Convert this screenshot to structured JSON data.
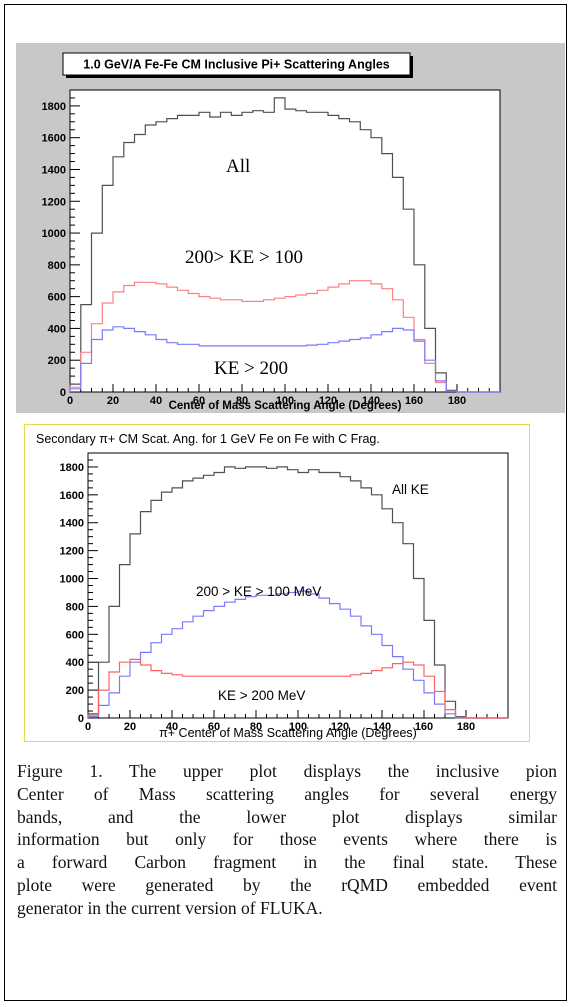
{
  "chart_data": [
    {
      "type": "line",
      "title": "1.0 GeV/A Fe-Fe CM Inclusive Pi+ Scattering Angles",
      "xlabel": "Center of Mass Scattering Angle (Degrees)",
      "ylabel": "",
      "xlim": [
        0,
        200
      ],
      "ylim": [
        0,
        1900
      ],
      "xticks": [
        0,
        20,
        40,
        60,
        80,
        100,
        120,
        140,
        160,
        180
      ],
      "yticks": [
        0,
        200,
        400,
        600,
        800,
        1000,
        1200,
        1400,
        1600,
        1800
      ],
      "grid": false,
      "x": [
        0,
        5,
        10,
        15,
        20,
        25,
        30,
        35,
        40,
        45,
        50,
        55,
        60,
        65,
        70,
        75,
        80,
        85,
        90,
        95,
        100,
        105,
        110,
        115,
        120,
        125,
        130,
        135,
        140,
        145,
        150,
        155,
        160,
        165,
        170,
        175,
        180,
        185,
        190,
        195,
        200
      ],
      "series": [
        {
          "name": "All",
          "color": "#505050",
          "values": [
            50,
            550,
            1000,
            1300,
            1480,
            1570,
            1620,
            1680,
            1700,
            1720,
            1740,
            1740,
            1760,
            1730,
            1760,
            1740,
            1760,
            1770,
            1760,
            1850,
            1780,
            1770,
            1760,
            1760,
            1740,
            1720,
            1700,
            1650,
            1600,
            1500,
            1350,
            1150,
            800,
            400,
            120,
            10,
            0,
            0,
            0,
            0,
            0
          ]
        },
        {
          "name": "200> KE > 100",
          "color": "#ff8080",
          "values": [
            30,
            250,
            430,
            560,
            630,
            670,
            690,
            690,
            680,
            660,
            640,
            620,
            600,
            590,
            580,
            580,
            570,
            570,
            580,
            590,
            600,
            610,
            620,
            640,
            660,
            680,
            700,
            700,
            680,
            650,
            580,
            470,
            330,
            180,
            60,
            5,
            0,
            0,
            0,
            0,
            0
          ]
        },
        {
          "name": "KE > 200",
          "color": "#7a7aff",
          "values": [
            20,
            180,
            330,
            390,
            410,
            400,
            380,
            360,
            330,
            310,
            300,
            300,
            290,
            290,
            290,
            290,
            290,
            290,
            290,
            290,
            290,
            290,
            295,
            300,
            310,
            320,
            330,
            340,
            360,
            380,
            400,
            390,
            320,
            200,
            70,
            5,
            0,
            0,
            0,
            0,
            0
          ]
        }
      ],
      "annotations": [
        "All",
        "200> KE > 100",
        "KE > 200"
      ]
    },
    {
      "type": "line",
      "title": "Secondary π+ CM Scat. Ang. for 1 GeV Fe on Fe with C Frag.",
      "xlabel": "π+ Center of Mass Scattering Angle (Degrees)",
      "ylabel": "",
      "xlim": [
        0,
        200
      ],
      "ylim": [
        0,
        1900
      ],
      "xticks": [
        0,
        20,
        40,
        60,
        80,
        100,
        120,
        140,
        160,
        180
      ],
      "yticks": [
        0,
        200,
        400,
        600,
        800,
        1000,
        1200,
        1400,
        1600,
        1800
      ],
      "grid": false,
      "x": [
        0,
        5,
        10,
        15,
        20,
        25,
        30,
        35,
        40,
        45,
        50,
        55,
        60,
        65,
        70,
        75,
        80,
        85,
        90,
        95,
        100,
        105,
        110,
        115,
        120,
        125,
        130,
        135,
        140,
        145,
        150,
        155,
        160,
        165,
        170,
        175,
        180,
        185,
        190,
        195,
        200
      ],
      "series": [
        {
          "name": "All KE",
          "color": "#505050",
          "values": [
            30,
            400,
            800,
            1100,
            1320,
            1480,
            1560,
            1620,
            1650,
            1700,
            1720,
            1740,
            1760,
            1800,
            1790,
            1800,
            1800,
            1790,
            1800,
            1780,
            1760,
            1780,
            1760,
            1760,
            1730,
            1700,
            1650,
            1600,
            1500,
            1400,
            1250,
            1000,
            700,
            380,
            120,
            10,
            0,
            0,
            0,
            0,
            0
          ]
        },
        {
          "name": "200 > KE > 100 MeV",
          "color": "#7a7aff",
          "values": [
            10,
            90,
            180,
            300,
            400,
            470,
            540,
            600,
            640,
            690,
            730,
            770,
            800,
            830,
            850,
            870,
            880,
            880,
            890,
            900,
            910,
            890,
            860,
            820,
            780,
            730,
            660,
            600,
            520,
            440,
            350,
            270,
            180,
            100,
            30,
            3,
            0,
            0,
            0,
            0,
            0
          ]
        },
        {
          "name": "KE > 200 MeV",
          "color": "#ff6060",
          "values": [
            20,
            200,
            330,
            400,
            420,
            380,
            340,
            320,
            310,
            300,
            300,
            300,
            300,
            300,
            300,
            300,
            300,
            300,
            300,
            300,
            300,
            300,
            300,
            300,
            300,
            310,
            320,
            340,
            360,
            390,
            400,
            380,
            300,
            190,
            60,
            5,
            0,
            0,
            0,
            0,
            0
          ]
        }
      ],
      "annotations": [
        "All KE",
        "200 > KE > 100 MeV",
        "KE > 200 MeV"
      ]
    }
  ],
  "caption": {
    "lines": [
      "Figure 1.  The upper plot displays the inclusive pion",
      "Center of Mass scattering angles for several energy",
      "bands, and the lower plot displays similar",
      "information but only for those events where there is",
      "a forward Carbon fragment in the final state.  These",
      "plote were generated by the rQMD embedded event",
      "generator in the current version of FLUKA."
    ]
  }
}
